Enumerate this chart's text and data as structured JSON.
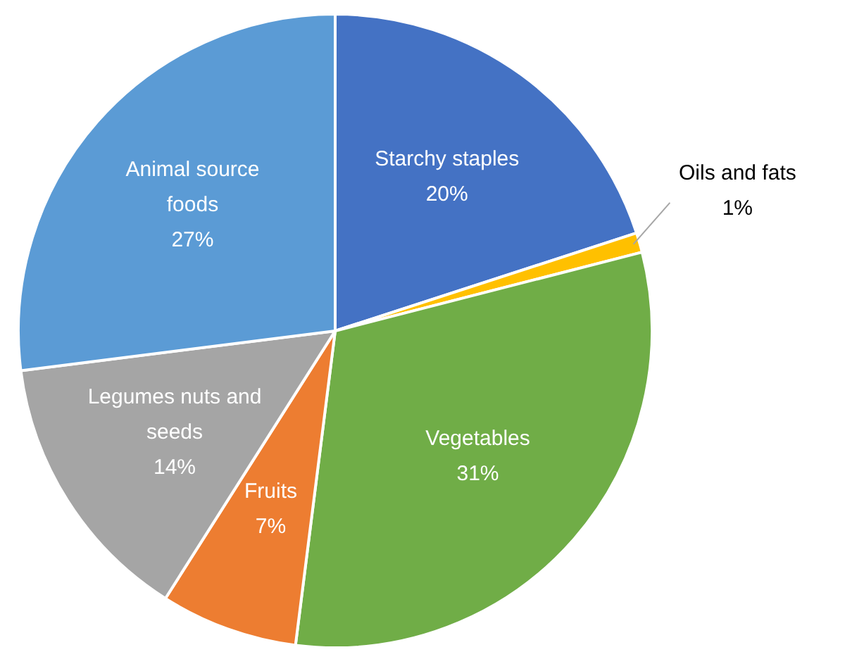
{
  "chart_data": {
    "type": "pie",
    "categories": [
      "Starchy staples",
      "Oils and fats",
      "Vegetables",
      "Fruits",
      "Legumes nuts and seeds",
      "Animal source foods"
    ],
    "values": [
      20,
      1,
      31,
      7,
      14,
      27
    ],
    "colors": [
      "#4472c4",
      "#ffc000",
      "#70ad47",
      "#ed7d31",
      "#a5a5a5",
      "#5b9bd5"
    ],
    "value_labels": [
      "20%",
      "1%",
      "31%",
      "7%",
      "14%",
      "27%"
    ],
    "legend": false
  }
}
